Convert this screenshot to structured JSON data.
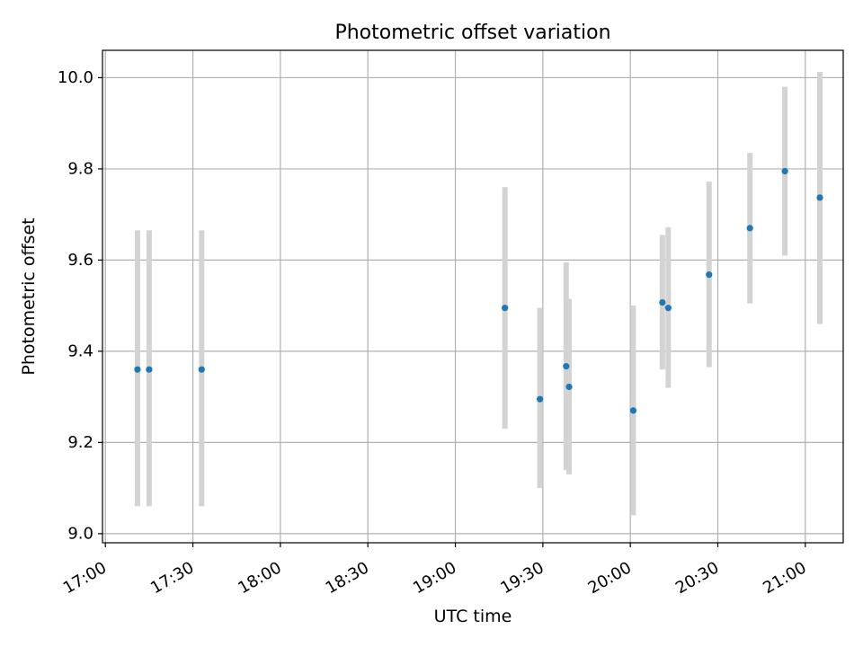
{
  "chart_data": {
    "type": "scatter",
    "title": "Photometric offset variation",
    "xlabel": "UTC time",
    "ylabel": "Photometric offset",
    "xlim": [
      "16:59",
      "21:13"
    ],
    "ylim": [
      8.98,
      10.06
    ],
    "grid": true,
    "x_ticks": [
      "17:00",
      "17:30",
      "18:00",
      "18:30",
      "19:00",
      "19:30",
      "20:00",
      "20:30",
      "21:00"
    ],
    "y_ticks": [
      "9.0",
      "9.2",
      "9.4",
      "9.6",
      "9.8",
      "10.0"
    ],
    "points": [
      {
        "x": "17:11",
        "y": 9.36,
        "err_low": 9.06,
        "err_high": 9.665
      },
      {
        "x": "17:15",
        "y": 9.36,
        "err_low": 9.06,
        "err_high": 9.665
      },
      {
        "x": "17:33",
        "y": 9.36,
        "err_low": 9.06,
        "err_high": 9.665
      },
      {
        "x": "19:17",
        "y": 9.495,
        "err_low": 9.23,
        "err_high": 9.76
      },
      {
        "x": "19:29",
        "y": 9.295,
        "err_low": 9.1,
        "err_high": 9.495
      },
      {
        "x": "19:38",
        "y": 9.367,
        "err_low": 9.14,
        "err_high": 9.595
      },
      {
        "x": "19:39",
        "y": 9.322,
        "err_low": 9.13,
        "err_high": 9.515
      },
      {
        "x": "20:01",
        "y": 9.27,
        "err_low": 9.04,
        "err_high": 9.5
      },
      {
        "x": "20:11",
        "y": 9.507,
        "err_low": 9.36,
        "err_high": 9.655
      },
      {
        "x": "20:13",
        "y": 9.495,
        "err_low": 9.32,
        "err_high": 9.672
      },
      {
        "x": "20:27",
        "y": 9.568,
        "err_low": 9.365,
        "err_high": 9.772
      },
      {
        "x": "20:41",
        "y": 9.67,
        "err_low": 9.505,
        "err_high": 9.835
      },
      {
        "x": "20:53",
        "y": 9.795,
        "err_low": 9.61,
        "err_high": 9.98
      },
      {
        "x": "21:05",
        "y": 9.737,
        "err_low": 9.46,
        "err_high": 10.013
      }
    ],
    "colors": {
      "marker": "#1f77b4",
      "errorbar": "#d3d3d3",
      "grid": "#b0b0b0",
      "axis": "#000000"
    }
  }
}
